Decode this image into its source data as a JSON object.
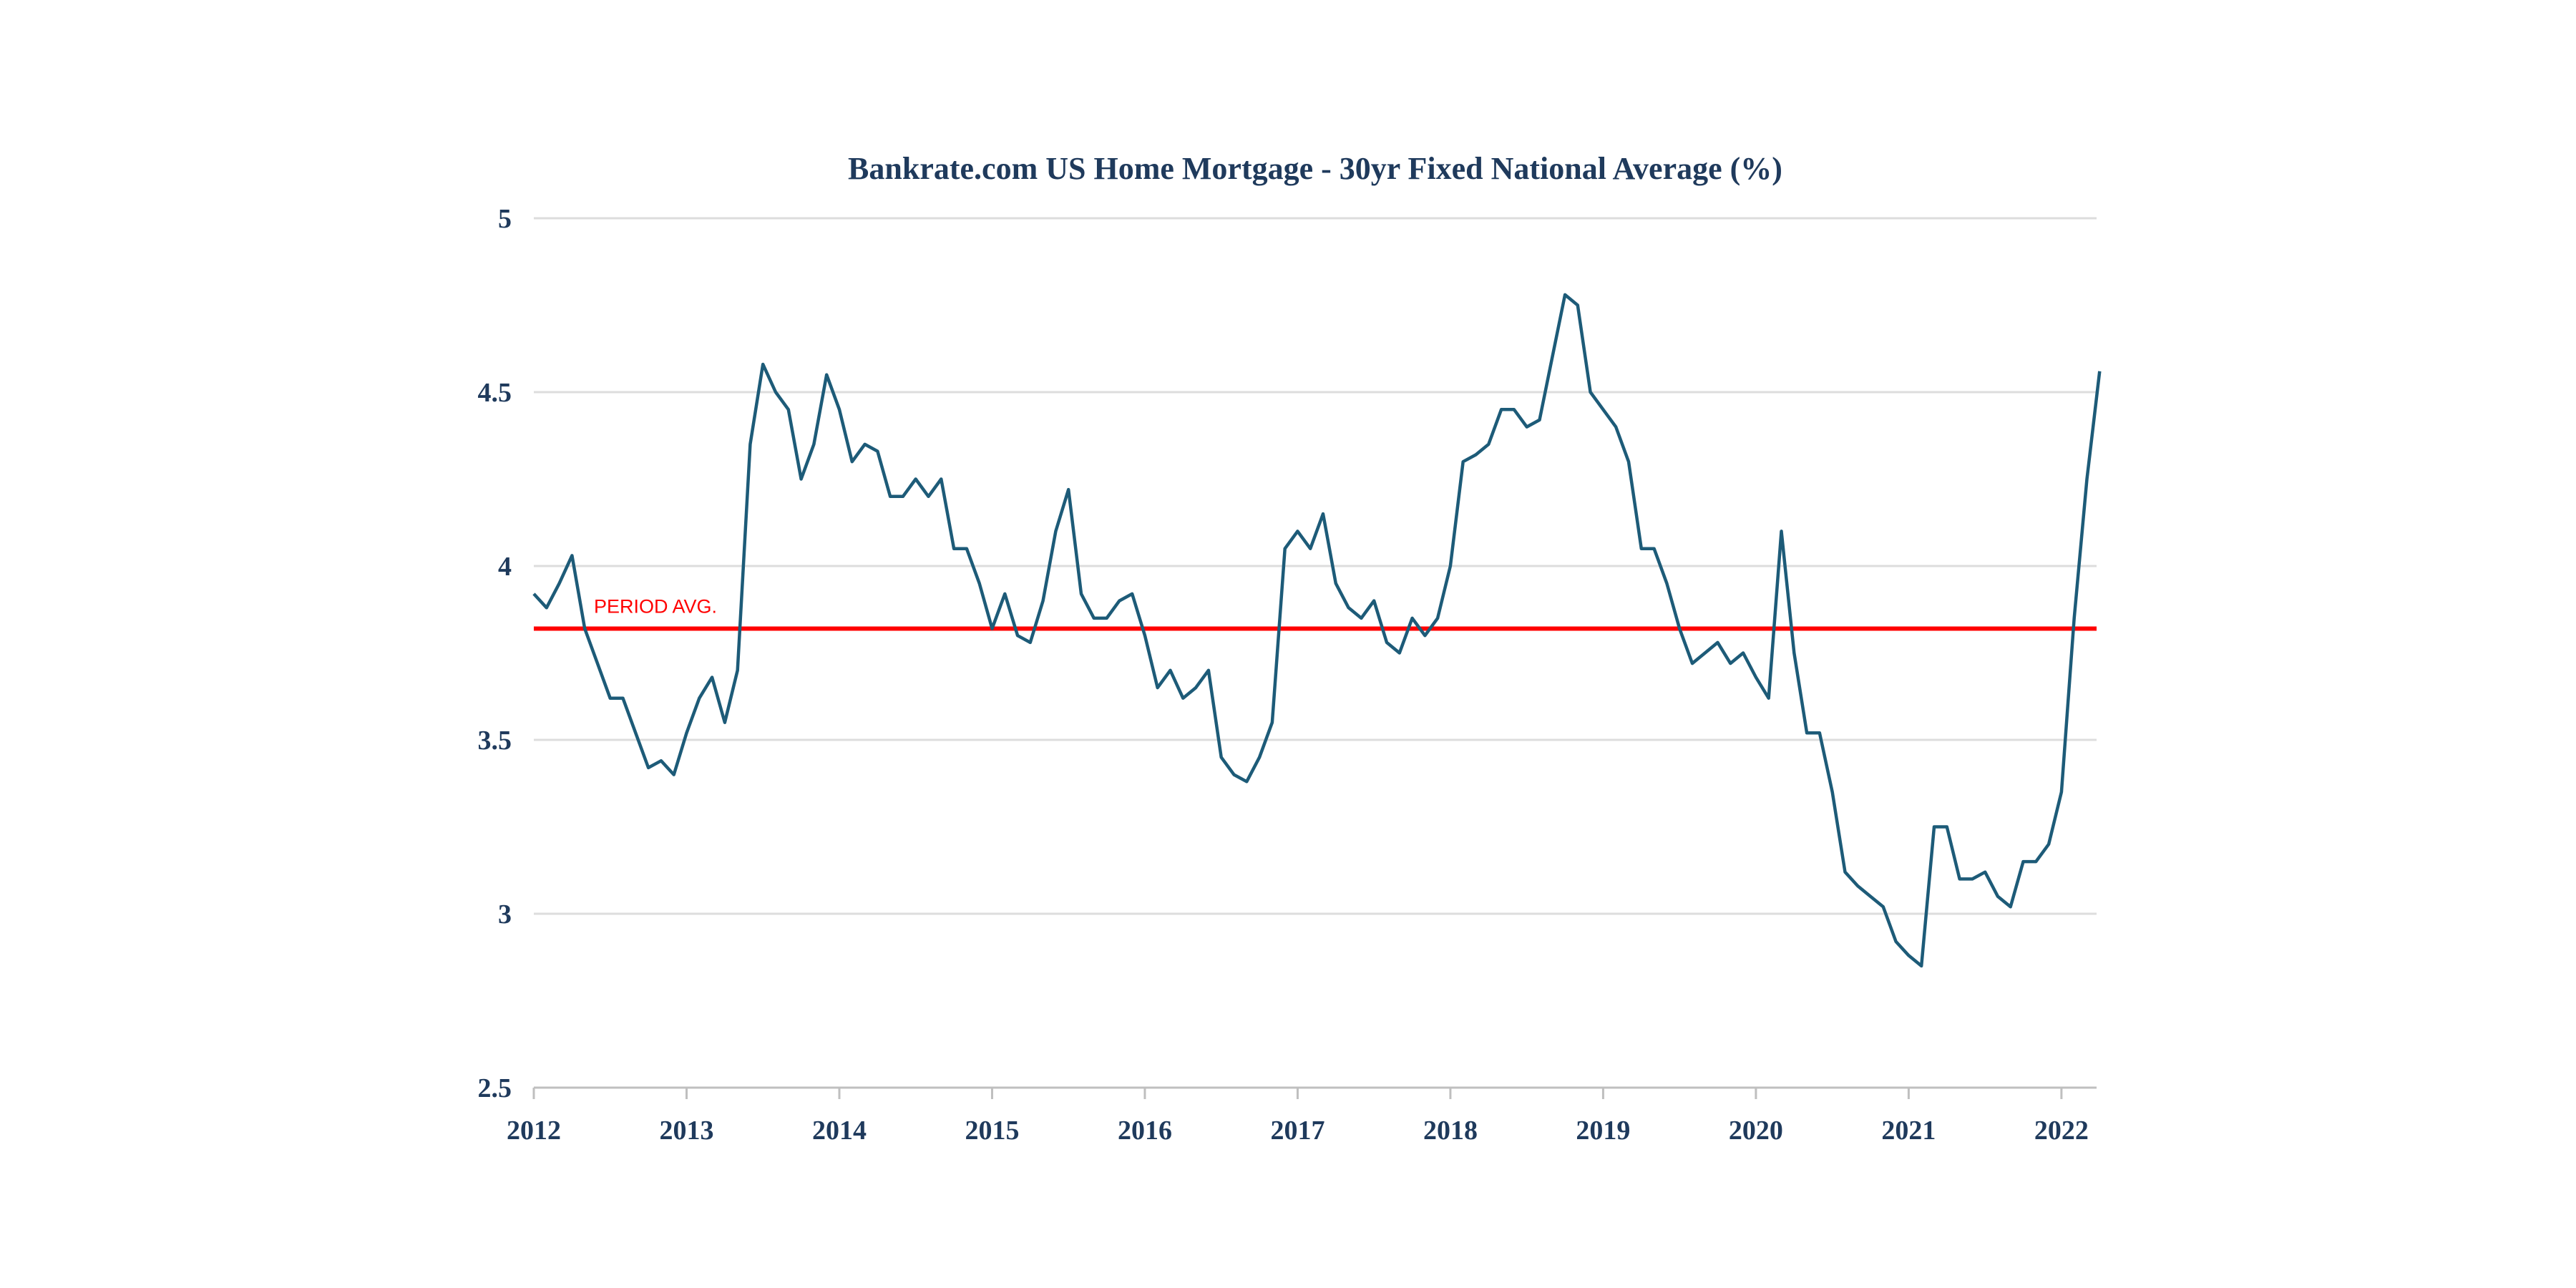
{
  "chart_data": {
    "type": "line",
    "title": "Bankrate.com US Home Mortgage - 30yr Fixed National Average (%)",
    "xlabel": "",
    "ylabel": "",
    "xlim": [
      2012,
      2022.23
    ],
    "ylim": [
      2.5,
      5
    ],
    "yticks": [
      "2.5",
      "3",
      "3.5",
      "4",
      "4.5",
      "5"
    ],
    "xticks": [
      "2012",
      "2013",
      "2014",
      "2015",
      "2016",
      "2017",
      "2018",
      "2019",
      "2020",
      "2021",
      "2022"
    ],
    "grid": true,
    "line_color": "#1d5b78",
    "series": [
      {
        "name": "30yr Fixed National Average",
        "start_year": 2012,
        "step": "monthly",
        "values": [
          3.92,
          3.88,
          3.95,
          4.03,
          3.82,
          3.72,
          3.62,
          3.62,
          3.52,
          3.42,
          3.44,
          3.4,
          3.52,
          3.62,
          3.68,
          3.55,
          3.7,
          4.35,
          4.58,
          4.5,
          4.45,
          4.25,
          4.35,
          4.55,
          4.45,
          4.3,
          4.35,
          4.33,
          4.2,
          4.2,
          4.25,
          4.2,
          4.25,
          4.05,
          4.05,
          3.95,
          3.82,
          3.92,
          3.8,
          3.78,
          3.9,
          4.1,
          4.22,
          3.92,
          3.85,
          3.85,
          3.9,
          3.92,
          3.8,
          3.65,
          3.7,
          3.62,
          3.65,
          3.7,
          3.45,
          3.4,
          3.38,
          3.45,
          3.55,
          4.05,
          4.1,
          4.05,
          4.15,
          3.95,
          3.88,
          3.85,
          3.9,
          3.78,
          3.75,
          3.85,
          3.8,
          3.85,
          4.0,
          4.3,
          4.32,
          4.35,
          4.45,
          4.45,
          4.4,
          4.42,
          4.6,
          4.78,
          4.75,
          4.5,
          4.45,
          4.4,
          4.3,
          4.05,
          4.05,
          3.95,
          3.82,
          3.72,
          3.75,
          3.78,
          3.72,
          3.75,
          3.68,
          3.62,
          4.1,
          3.75,
          3.52,
          3.52,
          3.35,
          3.12,
          3.08,
          3.05,
          3.02,
          2.92,
          2.88,
          2.85,
          3.25,
          3.25,
          3.1,
          3.1,
          3.12,
          3.05,
          3.02,
          3.15,
          3.15,
          3.2,
          3.35,
          3.85,
          4.25,
          4.56
        ]
      }
    ],
    "reference_line": {
      "label": "PERIOD  AVG.",
      "value": 3.82,
      "color": "#ff0000"
    }
  }
}
